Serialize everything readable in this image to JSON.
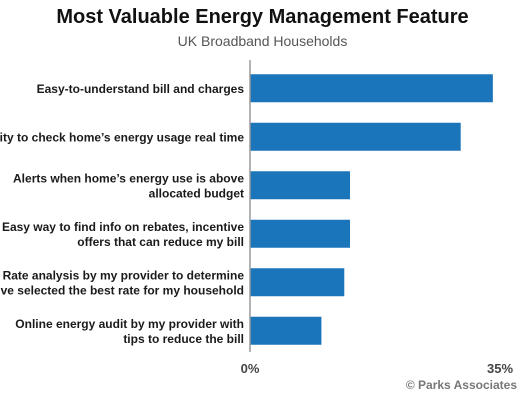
{
  "chart_data": {
    "type": "bar",
    "orientation": "horizontal",
    "title": "Most Valuable Energy Management Feature",
    "subtitle": "UK Broadband Households",
    "categories": [
      "Easy-to-understand bill and charges",
      "Ability to check home’s energy usage real time",
      "Alerts when home’s energy use is above allocated budget",
      "Easy way to find info on rebates, incentive offers that can reduce my bill",
      "Rate analysis by my provider to determine if I’ve selected the best rate for my household",
      "Online energy audit by my provider with tips to reduce the bill"
    ],
    "category_lines": [
      [
        "Easy-to-understand bill and charges"
      ],
      [
        "Ability to check home’s energy usage real time"
      ],
      [
        "Alerts when home’s energy use is above",
        "allocated budget"
      ],
      [
        "Easy way to find info on rebates, incentive",
        "offers that can reduce my bill"
      ],
      [
        "Rate analysis by my provider to determine",
        "if I’ve selected the best rate for my household"
      ],
      [
        "Online energy audit by my provider with",
        "tips to reduce the bill"
      ]
    ],
    "values": [
      34,
      29.5,
      14,
      14,
      13.2,
      10
    ],
    "xlim": [
      0,
      35
    ],
    "x_tick_labels": [
      "0%",
      "35%"
    ],
    "bar_color": "#1b75bb",
    "grid": false,
    "legend": "none"
  },
  "source": "© Parks Associates"
}
